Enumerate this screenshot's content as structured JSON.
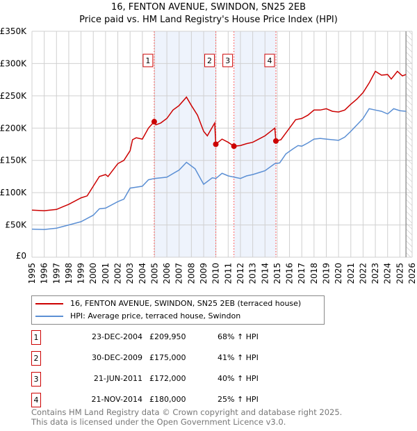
{
  "chart_data": {
    "type": "line",
    "title": "16, FENTON AVENUE, SWINDON, SN25 2EB",
    "subtitle": "Price paid vs. HM Land Registry's House Price Index (HPI)",
    "xlim": [
      1995,
      2026
    ],
    "ylim": [
      0,
      350000
    ],
    "x_ticks": [
      "1995",
      "1996",
      "1997",
      "1998",
      "1999",
      "2000",
      "2001",
      "2002",
      "2003",
      "2004",
      "2005",
      "2006",
      "2007",
      "2008",
      "2009",
      "2010",
      "2011",
      "2012",
      "2013",
      "2014",
      "2015",
      "2016",
      "2017",
      "2018",
      "2019",
      "2020",
      "2021",
      "2022",
      "2023",
      "2024",
      "2025",
      "2026"
    ],
    "y_ticks": [
      {
        "v": 0,
        "label": "£0"
      },
      {
        "v": 50000,
        "label": "£50K"
      },
      {
        "v": 100000,
        "label": "£100K"
      },
      {
        "v": 150000,
        "label": "£150K"
      },
      {
        "v": 200000,
        "label": "£200K"
      },
      {
        "v": 250000,
        "label": "£250K"
      },
      {
        "v": 300000,
        "label": "£300K"
      },
      {
        "v": 350000,
        "label": "£350K"
      }
    ],
    "grid": true,
    "shaded_ranges": [
      [
        2004.97,
        2009.99
      ],
      [
        2011.47,
        2014.89
      ]
    ],
    "hatched_from": 2025.5,
    "series": [
      {
        "name": "16, FENTON AVENUE, SWINDON, SN25 2EB (terraced house)",
        "color": "#cc0000",
        "x": [
          1995,
          1996,
          1997,
          1997.5,
          1998,
          1999,
          1999.5,
          2000,
          2000.5,
          2001,
          2001.2,
          2002,
          2002.5,
          2003,
          2003.2,
          2003.5,
          2004,
          2004.5,
          2004.97,
          2005.1,
          2005.5,
          2006,
          2006.5,
          2007,
          2007.6,
          2008,
          2008.5,
          2009,
          2009.3,
          2009.9,
          2009.99,
          2010.5,
          2011,
          2011.47,
          2012,
          2012.5,
          2013,
          2013.5,
          2014,
          2014.8,
          2014.89,
          2015.3,
          2016,
          2016.5,
          2017,
          2017.5,
          2018,
          2018.5,
          2019,
          2019.5,
          2020,
          2020.5,
          2021,
          2021.5,
          2022,
          2022.5,
          2023,
          2023.5,
          2024,
          2024.3,
          2024.8,
          2025.2,
          2025.5
        ],
        "y": [
          73000,
          72000,
          74000,
          78000,
          82000,
          92000,
          95000,
          110000,
          125000,
          128000,
          125000,
          145000,
          150000,
          165000,
          182000,
          185000,
          183000,
          200000,
          209950,
          205000,
          208000,
          215000,
          228000,
          235000,
          248000,
          235000,
          220000,
          195000,
          188000,
          208000,
          175000,
          183000,
          178000,
          172000,
          173000,
          176000,
          178000,
          183000,
          188000,
          200000,
          180000,
          182000,
          200000,
          213000,
          215000,
          220000,
          228000,
          228000,
          230000,
          226000,
          225000,
          228000,
          237000,
          245000,
          255000,
          270000,
          288000,
          282000,
          283000,
          276000,
          288000,
          281000,
          283000
        ]
      },
      {
        "name": "HPI: Average price, terraced house, Swindon",
        "color": "#5b8fd4",
        "x": [
          1995,
          1996,
          1997,
          1998,
          1999,
          2000,
          2000.5,
          2001,
          2002,
          2002.5,
          2003,
          2004,
          2004.5,
          2005,
          2006,
          2007,
          2007.6,
          2008.3,
          2009,
          2009.7,
          2010,
          2010.5,
          2011,
          2011.5,
          2012,
          2012.5,
          2013,
          2013.5,
          2014,
          2014.8,
          2015.2,
          2015.7,
          2016.3,
          2016.7,
          2017,
          2017.5,
          2018,
          2018.5,
          2019,
          2019.5,
          2020,
          2020.5,
          2021,
          2021.5,
          2022,
          2022.5,
          2023,
          2023.5,
          2024,
          2024.5,
          2025,
          2025.5
        ],
        "y": [
          43500,
          43000,
          45000,
          50000,
          55000,
          65000,
          75000,
          76000,
          86000,
          90000,
          107000,
          110000,
          120000,
          122000,
          124000,
          135000,
          147000,
          137000,
          113000,
          123000,
          122000,
          130000,
          126000,
          124000,
          122000,
          126000,
          128000,
          131000,
          134000,
          145000,
          146000,
          160000,
          168000,
          173000,
          172000,
          177000,
          183000,
          184000,
          183000,
          182000,
          181000,
          186000,
          195000,
          205000,
          215000,
          230000,
          228000,
          226000,
          222000,
          230000,
          227000,
          226000
        ]
      }
    ],
    "sales": [
      {
        "label": "1",
        "x": 2004.97,
        "price": 209950
      },
      {
        "label": "2",
        "x": 2009.99,
        "price": 175000
      },
      {
        "label": "3",
        "x": 2011.47,
        "price": 172000
      },
      {
        "label": "4",
        "x": 2014.89,
        "price": 180000
      }
    ]
  },
  "legend": {
    "red": "16, FENTON AVENUE, SWINDON, SN25 2EB (terraced house)",
    "blue": "HPI: Average price, terraced house, Swindon"
  },
  "table": [
    {
      "num": "1",
      "date": "23-DEC-2004",
      "price": "£209,950",
      "hpi": "68% ↑ HPI"
    },
    {
      "num": "2",
      "date": "30-DEC-2009",
      "price": "£175,000",
      "hpi": "41% ↑ HPI"
    },
    {
      "num": "3",
      "date": "21-JUN-2011",
      "price": "£172,000",
      "hpi": "40% ↑ HPI"
    },
    {
      "num": "4",
      "date": "21-NOV-2014",
      "price": "£180,000",
      "hpi": "25% ↑ HPI"
    }
  ],
  "footer": {
    "line1": "Contains HM Land Registry data © Crown copyright and database right 2025.",
    "line2": "This data is licensed under the Open Government Licence v3.0."
  }
}
